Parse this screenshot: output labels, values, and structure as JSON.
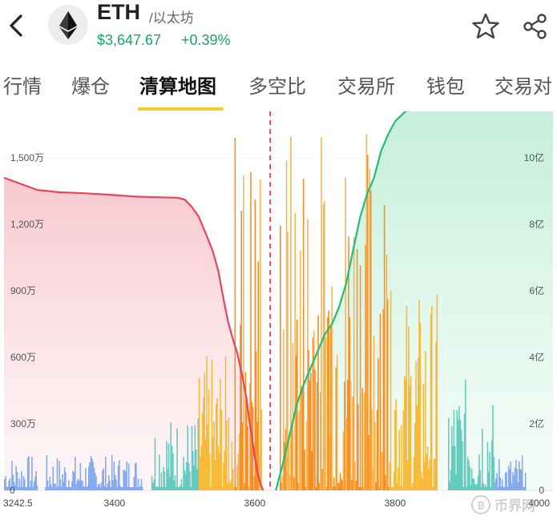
{
  "header": {
    "symbol": "ETH",
    "subtitle": "/以太坊",
    "price": "$3,647.67",
    "change": "+0.39%"
  },
  "tabs": [
    {
      "label": "行情",
      "active": false
    },
    {
      "label": "爆仓",
      "active": false
    },
    {
      "label": "清算地图",
      "active": true
    },
    {
      "label": "多空比",
      "active": false
    },
    {
      "label": "交易所",
      "active": false
    },
    {
      "label": "钱包",
      "active": false
    },
    {
      "label": "交易对",
      "active": false
    }
  ],
  "colors": {
    "up": "#1aa760",
    "short_curve": "#e8445a",
    "long_curve": "#1fbf72",
    "current_price_line": "#e8445a",
    "tab_underline": "#f2cc2e"
  },
  "watermark": "币界网",
  "chart_data": {
    "type": "bar",
    "x_range": [
      3242.5,
      4000
    ],
    "x_ticks": [
      "3242.5",
      "3400",
      "3600",
      "3800",
      "4000"
    ],
    "left_axis_ticks": [
      "0",
      "300万",
      "600万",
      "900万",
      "1,200万",
      "1,500万"
    ],
    "right_axis_ticks": [
      "0",
      "2亿",
      "4亿",
      "6亿",
      "8亿",
      "10亿"
    ],
    "current_price": 3622,
    "left_curve": [
      [
        3242.5,
        1410
      ],
      [
        3260,
        1390
      ],
      [
        3290,
        1355
      ],
      [
        3320,
        1345
      ],
      [
        3360,
        1340
      ],
      [
        3400,
        1332
      ],
      [
        3430,
        1325
      ],
      [
        3460,
        1322
      ],
      [
        3490,
        1320
      ],
      [
        3500,
        1312
      ],
      [
        3510,
        1280
      ],
      [
        3520,
        1235
      ],
      [
        3530,
        1160
      ],
      [
        3540,
        1080
      ],
      [
        3548,
        990
      ],
      [
        3555,
        870
      ],
      [
        3562,
        760
      ],
      [
        3568,
        690
      ],
      [
        3575,
        620
      ],
      [
        3582,
        520
      ],
      [
        3588,
        420
      ],
      [
        3592,
        320
      ],
      [
        3596,
        240
      ],
      [
        3600,
        150
      ],
      [
        3604,
        80
      ],
      [
        3608,
        30
      ],
      [
        3612,
        0
      ]
    ],
    "right_curve": [
      [
        3630,
        0
      ],
      [
        3640,
        0.8
      ],
      [
        3650,
        1.7
      ],
      [
        3660,
        2.6
      ],
      [
        3670,
        3.2
      ],
      [
        3680,
        3.7
      ],
      [
        3690,
        4.2
      ],
      [
        3700,
        4.7
      ],
      [
        3710,
        5.0
      ],
      [
        3720,
        5.5
      ],
      [
        3730,
        6.2
      ],
      [
        3740,
        7.2
      ],
      [
        3750,
        8.2
      ],
      [
        3760,
        8.9
      ],
      [
        3770,
        9.4
      ],
      [
        3780,
        10.2
      ],
      [
        3790,
        10.7
      ],
      [
        3800,
        11.1
      ],
      [
        3815,
        11.4
      ],
      [
        3830,
        11.5
      ],
      [
        3850,
        11.6
      ],
      [
        3862,
        11.8
      ]
    ]
  }
}
